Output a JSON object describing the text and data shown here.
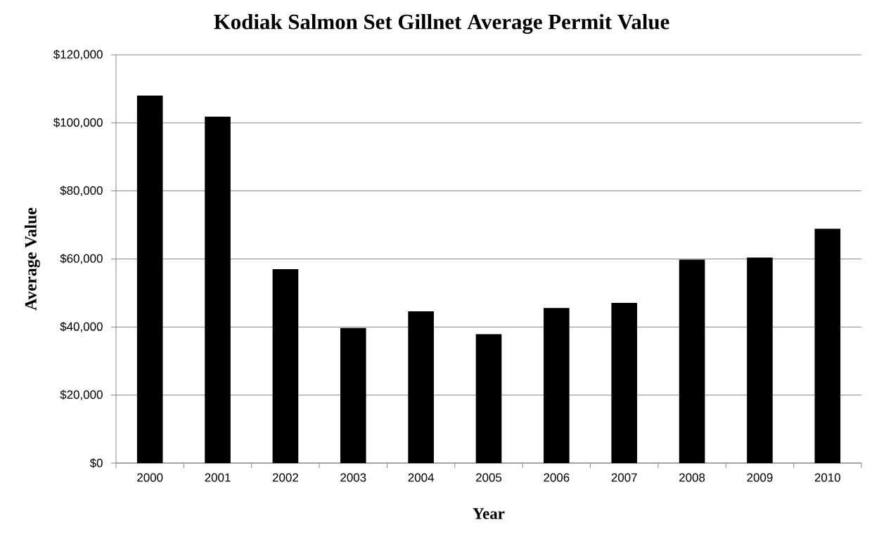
{
  "chart_data": {
    "type": "bar",
    "title": "Kodiak Salmon Set Gillnet Average Permit Value",
    "xlabel": "Year",
    "ylabel": "Average Value",
    "categories": [
      "2000",
      "2001",
      "2002",
      "2003",
      "2004",
      "2005",
      "2006",
      "2007",
      "2008",
      "2009",
      "2010"
    ],
    "values": [
      108000,
      101800,
      57000,
      39700,
      44600,
      37900,
      45600,
      47100,
      59800,
      60400,
      68900
    ],
    "color": "#000000",
    "ylim": [
      0,
      120000
    ],
    "yticks": [
      {
        "value": 0,
        "label": "$0"
      },
      {
        "value": 20000,
        "label": "$20,000"
      },
      {
        "value": 40000,
        "label": "$40,000"
      },
      {
        "value": 60000,
        "label": "$60,000"
      },
      {
        "value": 80000,
        "label": "$80,000"
      },
      {
        "value": 100000,
        "label": "$100,000"
      },
      {
        "value": 120000,
        "label": "$120,000"
      }
    ],
    "grid": "y"
  }
}
